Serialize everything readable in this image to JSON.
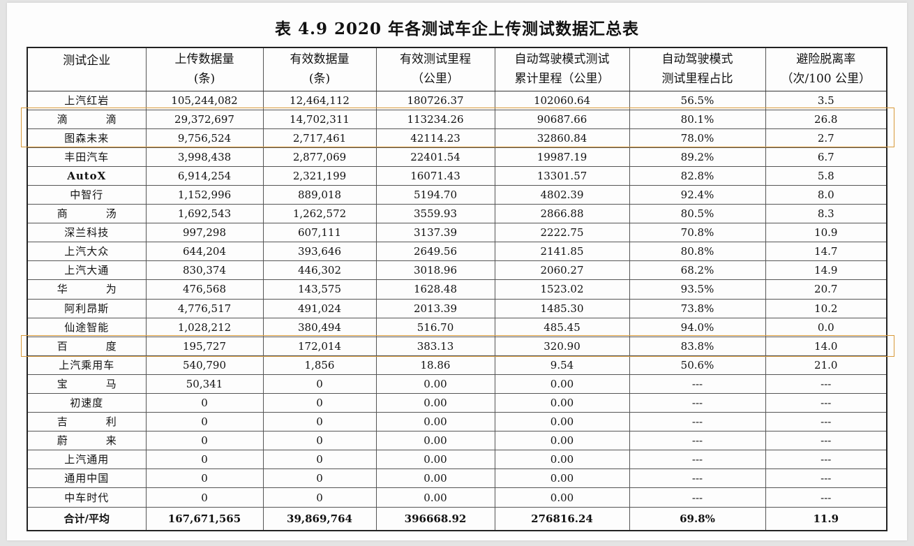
{
  "title": "表 4.9 2020 年各测试车企上传测试数据汇总表",
  "colors": {
    "highlight": "#d89a3a",
    "border": "#555555",
    "page": "#fdfdfd"
  },
  "headers": [
    {
      "l1": "测试企业",
      "l2": ""
    },
    {
      "l1": "上传数据量",
      "l2": "(条)"
    },
    {
      "l1": "有效数据量",
      "l2": "(条)"
    },
    {
      "l1": "有效测试里程",
      "l2": "（公里）"
    },
    {
      "l1": "自动驾驶模式测试",
      "l2": "累计里程（公里）"
    },
    {
      "l1": "自动驾驶模式",
      "l2": "测试里程占比"
    },
    {
      "l1": "避险脱离率",
      "l2": "（次/100 公里）"
    }
  ],
  "rows": [
    [
      "上汽红岩",
      "105,244,082",
      "12,464,112",
      "180726.37",
      "102060.64",
      "56.5%",
      "3.5"
    ],
    [
      "滴　滴",
      "29,372,697",
      "14,702,311",
      "113234.26",
      "90687.66",
      "80.1%",
      "26.8"
    ],
    [
      "图森未来",
      "9,756,524",
      "2,717,461",
      "42114.23",
      "32860.84",
      "78.0%",
      "2.7"
    ],
    [
      "丰田汽车",
      "3,998,438",
      "2,877,069",
      "22401.54",
      "19987.19",
      "89.2%",
      "6.7"
    ],
    [
      "AutoX",
      "6,914,254",
      "2,321,199",
      "16071.43",
      "13301.57",
      "82.8%",
      "5.8"
    ],
    [
      "中智行",
      "1,152,996",
      "889,018",
      "5194.70",
      "4802.39",
      "92.4%",
      "8.0"
    ],
    [
      "商　汤",
      "1,692,543",
      "1,262,572",
      "3559.93",
      "2866.88",
      "80.5%",
      "8.3"
    ],
    [
      "深兰科技",
      "997,298",
      "607,111",
      "3137.39",
      "2222.75",
      "70.8%",
      "10.9"
    ],
    [
      "上汽大众",
      "644,204",
      "393,646",
      "2649.56",
      "2141.85",
      "80.8%",
      "14.7"
    ],
    [
      "上汽大通",
      "830,374",
      "446,302",
      "3018.96",
      "2060.27",
      "68.2%",
      "14.9"
    ],
    [
      "华　为",
      "476,568",
      "143,575",
      "1628.48",
      "1523.02",
      "93.5%",
      "20.7"
    ],
    [
      "阿利昂斯",
      "4,776,517",
      "491,024",
      "2013.39",
      "1485.30",
      "73.8%",
      "10.2"
    ],
    [
      "仙途智能",
      "1,028,212",
      "380,494",
      "516.70",
      "485.45",
      "94.0%",
      "0.0"
    ],
    [
      "百　度",
      "195,727",
      "172,014",
      "383.13",
      "320.90",
      "83.8%",
      "14.0"
    ],
    [
      "上汽乘用车",
      "540,790",
      "1,856",
      "18.86",
      "9.54",
      "50.6%",
      "21.0"
    ],
    [
      "宝　马",
      "50,341",
      "0",
      "0.00",
      "0.00",
      "---",
      "---"
    ],
    [
      "初速度",
      "0",
      "0",
      "0.00",
      "0.00",
      "---",
      "---"
    ],
    [
      "吉　利",
      "0",
      "0",
      "0.00",
      "0.00",
      "---",
      "---"
    ],
    [
      "蔚　来",
      "0",
      "0",
      "0.00",
      "0.00",
      "---",
      "---"
    ],
    [
      "上汽通用",
      "0",
      "0",
      "0.00",
      "0.00",
      "---",
      "---"
    ],
    [
      "通用中国",
      "0",
      "0",
      "0.00",
      "0.00",
      "---",
      "---"
    ],
    [
      "中车时代",
      "0",
      "0",
      "0.00",
      "0.00",
      "---",
      "---"
    ]
  ],
  "total": [
    "合计/平均",
    "167,671,565",
    "39,869,764",
    "396668.92",
    "276816.24",
    "69.8%",
    "11.9"
  ]
}
